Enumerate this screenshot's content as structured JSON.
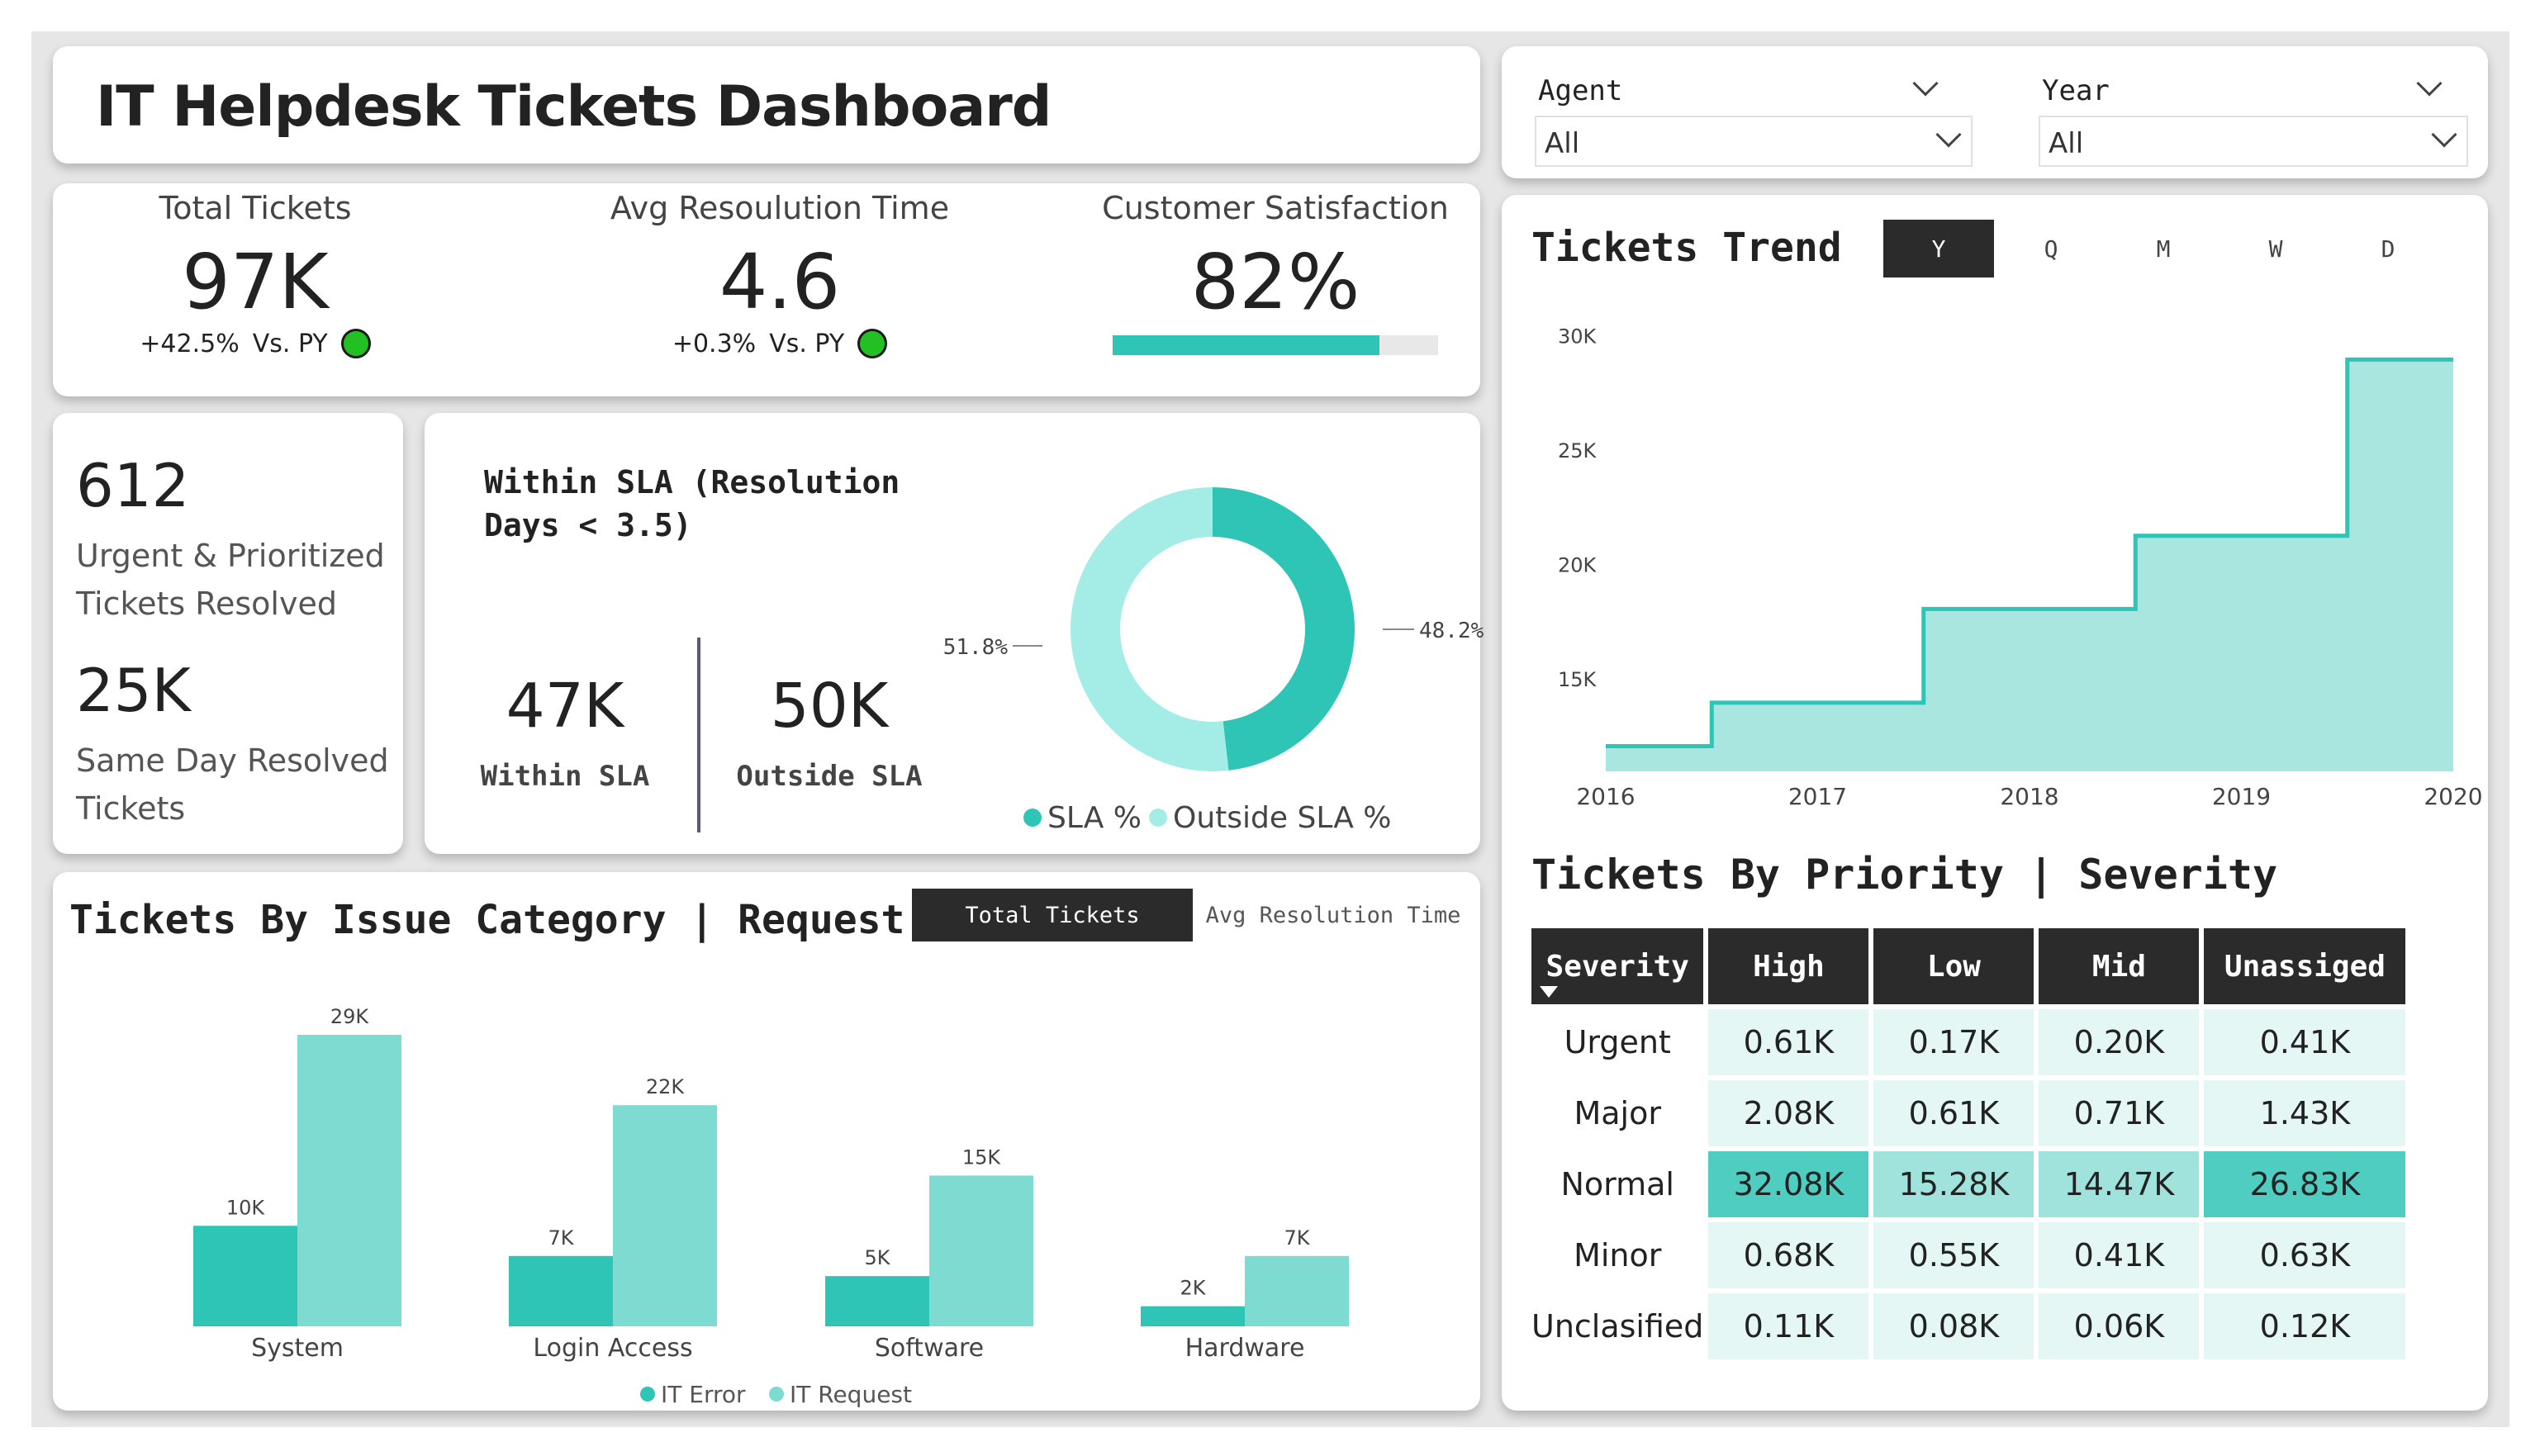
{
  "title": "IT Helpdesk Tickets Dashboard",
  "kpis": [
    {
      "label": "Total Tickets",
      "value": "97K",
      "delta": "+42.5%",
      "vs": "Vs. PY",
      "status": "good"
    },
    {
      "label": "Avg Resoulution Time",
      "value": "4.6",
      "delta": "+0.3%",
      "vs": "Vs. PY",
      "status": "good"
    },
    {
      "label": "Customer Satisfaction",
      "value": "82%",
      "progress": 0.82
    }
  ],
  "urgent": {
    "value": "612",
    "label": "Urgent & Prioritized Tickets Resolved"
  },
  "same_day": {
    "value": "25K",
    "label": "Same Day Resolved Tickets"
  },
  "sla": {
    "title": "Within SLA (Resolution Days < 3.5)",
    "within_value": "47K",
    "within_label": "Within SLA",
    "outside_value": "50K",
    "outside_label": "Outside SLA",
    "donut_within_label": "48.2%",
    "donut_outside_label": "51.8%",
    "legend_within": "SLA %",
    "legend_outside": "Outside SLA %"
  },
  "filters": {
    "agent_label": "Agent",
    "agent_value": "All",
    "year_label": "Year",
    "year_value": "All"
  },
  "trend": {
    "title": "Tickets Trend",
    "granularity": [
      "Y",
      "Q",
      "M",
      "W",
      "D"
    ],
    "active": "Y"
  },
  "category": {
    "title": "Tickets By Issue Category | Request",
    "toggle_active": "Total Tickets",
    "toggle_inactive": "Avg Resolution Time"
  },
  "priority": {
    "title": "Tickets By Priority | Severity",
    "row_header": "Severity",
    "columns": [
      "High",
      "Low",
      "Mid",
      "Unassiged"
    ],
    "rows": [
      {
        "label": "Urgent",
        "values": [
          "0.61K",
          "0.17K",
          "0.20K",
          "0.41K"
        ],
        "raw": [
          0.61,
          0.17,
          0.2,
          0.41
        ]
      },
      {
        "label": "Major",
        "values": [
          "2.08K",
          "0.61K",
          "0.71K",
          "1.43K"
        ],
        "raw": [
          2.08,
          0.61,
          0.71,
          1.43
        ]
      },
      {
        "label": "Normal",
        "values": [
          "32.08K",
          "15.28K",
          "14.47K",
          "26.83K"
        ],
        "raw": [
          32.08,
          15.28,
          14.47,
          26.83
        ]
      },
      {
        "label": "Minor",
        "values": [
          "0.68K",
          "0.55K",
          "0.41K",
          "0.63K"
        ],
        "raw": [
          0.68,
          0.55,
          0.41,
          0.63
        ]
      },
      {
        "label": "Unclasified",
        "values": [
          "0.11K",
          "0.08K",
          "0.06K",
          "0.12K"
        ],
        "raw": [
          0.11,
          0.08,
          0.06,
          0.12
        ]
      }
    ]
  },
  "colors": {
    "teal_dark": "#2ec4b6",
    "teal_light": "#7ddbd2",
    "teal_area": "#a8e6df",
    "donut_light": "#a4ede6",
    "header_dark": "#2b2b2b",
    "good": "#22c022"
  },
  "chart_data": [
    {
      "type": "area",
      "title": "Tickets Trend",
      "x": [
        2016,
        2016.5,
        2017,
        2017.5,
        2018,
        2018.5,
        2019,
        2019.5,
        2020
      ],
      "categories": [
        "2016",
        "2017",
        "2018",
        "2019",
        "2020"
      ],
      "series": [
        {
          "values": [
            12.1,
            14.0,
            14.0,
            18.1,
            18.1,
            21.3,
            21.3,
            29.0,
            29.0
          ]
        }
      ],
      "step": true,
      "yticks": [
        "30K",
        "25K",
        "20K",
        "15K"
      ],
      "ylim": [
        11,
        31
      ],
      "xlim": [
        2016,
        2020
      ],
      "grid": false
    },
    {
      "type": "bar",
      "categories": [
        "System",
        "Login Access",
        "Software",
        "Hardware"
      ],
      "series": [
        {
          "name": "IT Error",
          "values": [
            10,
            7,
            5,
            2
          ],
          "labels": [
            "10K",
            "7K",
            "5K",
            "2K"
          ]
        },
        {
          "name": "IT Request",
          "values": [
            29,
            22,
            15,
            7
          ],
          "labels": [
            "29K",
            "22K",
            "15K",
            "7K"
          ]
        }
      ],
      "ylim": [
        0,
        30
      ],
      "legend": "bottom"
    },
    {
      "type": "pie",
      "donut": true,
      "slices": [
        {
          "name": "SLA %",
          "value": 48.2,
          "label": "48.2%"
        },
        {
          "name": "Outside SLA %",
          "value": 51.8,
          "label": "51.8%"
        }
      ],
      "legend": "bottom"
    }
  ]
}
